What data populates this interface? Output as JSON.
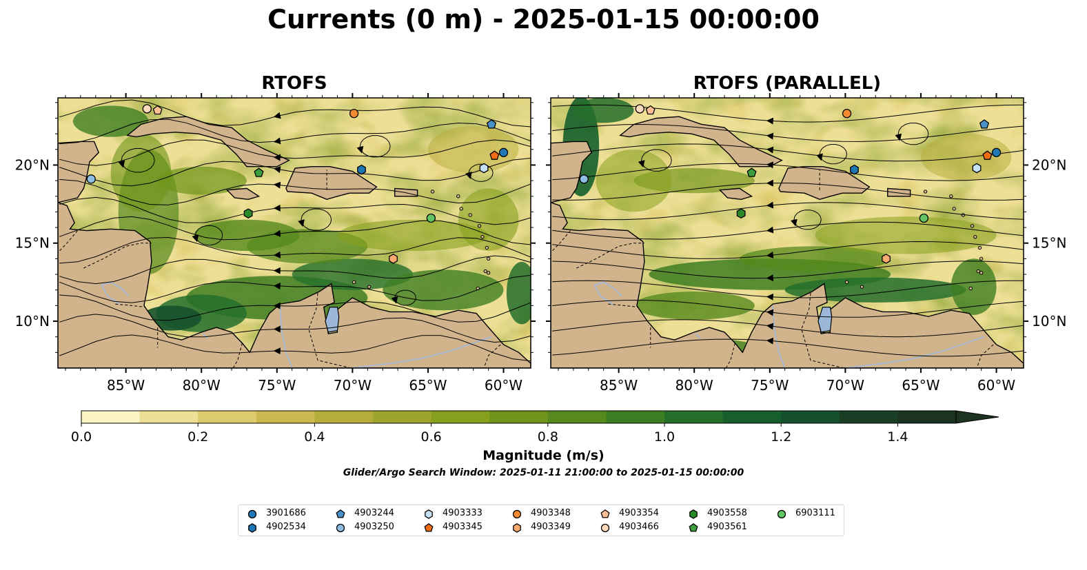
{
  "figure": {
    "title": "Currents (0 m) - 2025-01-15 00:00:00",
    "search_window": "Glider/Argo Search Window: 2025-01-11 21:00:00 to 2025-01-15 00:00:00"
  },
  "panels": [
    {
      "title": "RTOFS"
    },
    {
      "title": "RTOFS (PARALLEL)"
    }
  ],
  "axes": {
    "lon_labels": [
      "85°W",
      "80°W",
      "75°W",
      "70°W",
      "65°W",
      "60°W"
    ],
    "lon_values": [
      -85,
      -80,
      -75,
      -70,
      -65,
      -60
    ],
    "lat_labels": [
      "10°N",
      "15°N",
      "20°N"
    ],
    "lat_values": [
      10,
      15,
      20
    ],
    "lon_range": [
      -89.5,
      -58.2
    ],
    "lat_range": [
      7.0,
      24.3
    ]
  },
  "colorbar": {
    "label": "Magnitude (m/s)",
    "tick_labels": [
      "0.0",
      "0.2",
      "0.4",
      "0.6",
      "0.8",
      "1.0",
      "1.2",
      "1.4"
    ],
    "tick_values": [
      0.0,
      0.2,
      0.4,
      0.6,
      0.8,
      1.0,
      1.2,
      1.4
    ],
    "range": [
      0,
      1.5
    ],
    "extend": "max",
    "colors": [
      "#fbf5c3",
      "#eedf96",
      "#decb6d",
      "#cbb84e",
      "#b6ac3a",
      "#9ea52d",
      "#86a01d",
      "#6e9419",
      "#56891e",
      "#3e7e22",
      "#256f2b",
      "#165f2c",
      "#15522c",
      "#183f25",
      "#1b3320"
    ]
  },
  "colors": {
    "land": "#d2b48c",
    "lake": "#9bb8db",
    "river": "#a9b8cf"
  },
  "legend": [
    {
      "id": "3901686",
      "marker": "circle",
      "color": "#1f77b4"
    },
    {
      "id": "4902534",
      "marker": "hexagon",
      "color": "#1f77b4"
    },
    {
      "id": "4903244",
      "marker": "pentagon",
      "color": "#4a90c8"
    },
    {
      "id": "4903250",
      "marker": "circle",
      "color": "#8ebde3"
    },
    {
      "id": "4903333",
      "marker": "hexagon",
      "color": "#c6e0f5"
    },
    {
      "id": "4903345",
      "marker": "pentagon",
      "color": "#f06e13"
    },
    {
      "id": "4903348",
      "marker": "circle",
      "color": "#f58a34"
    },
    {
      "id": "4903349",
      "marker": "hexagon",
      "color": "#fcab70"
    },
    {
      "id": "4903354",
      "marker": "pentagon",
      "color": "#fdbf94"
    },
    {
      "id": "4903466",
      "marker": "circle",
      "color": "#fdd9bd"
    },
    {
      "id": "4903558",
      "marker": "hexagon",
      "color": "#2a8a2a"
    },
    {
      "id": "4903561",
      "marker": "pentagon",
      "color": "#3d9e3d"
    },
    {
      "id": "6903111",
      "marker": "circle",
      "color": "#62c462"
    }
  ],
  "floats": [
    {
      "id": "3901686",
      "lon": -60.0,
      "lat": 20.8
    },
    {
      "id": "4902534",
      "lon": -69.4,
      "lat": 19.7
    },
    {
      "id": "4903244",
      "lon": -60.8,
      "lat": 22.6
    },
    {
      "id": "4903250",
      "lon": -87.3,
      "lat": 19.1
    },
    {
      "id": "4903333",
      "lon": -61.3,
      "lat": 19.8
    },
    {
      "id": "4903345",
      "lon": -60.6,
      "lat": 20.6
    },
    {
      "id": "4903348",
      "lon": -69.9,
      "lat": 23.3
    },
    {
      "id": "4903349",
      "lon": -67.3,
      "lat": 14.0
    },
    {
      "id": "4903354",
      "lon": -82.9,
      "lat": 23.5
    },
    {
      "id": "4903466",
      "lon": -83.6,
      "lat": 23.6
    },
    {
      "id": "4903558",
      "lon": -76.9,
      "lat": 16.9
    },
    {
      "id": "4903561",
      "lon": -76.2,
      "lat": 19.5
    },
    {
      "id": "6903111",
      "lon": -64.8,
      "lat": 16.6
    }
  ]
}
